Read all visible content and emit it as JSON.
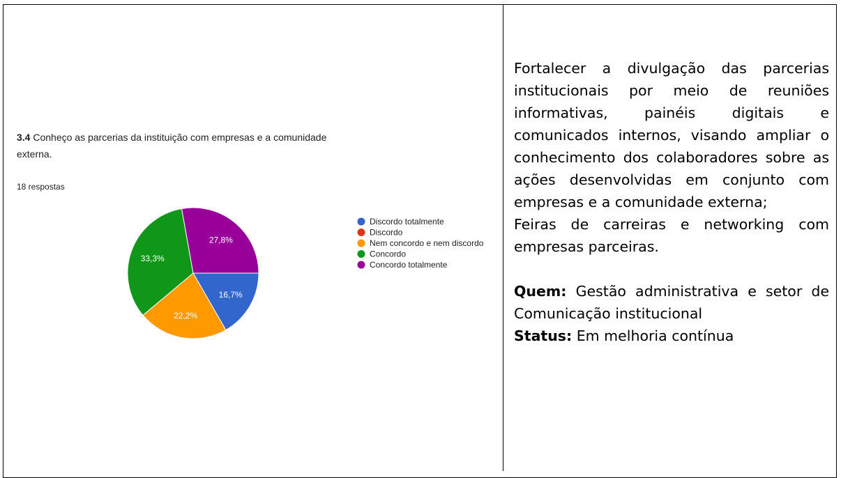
{
  "chart_data": {
    "type": "pie",
    "title_number": "3.4",
    "title": "Conheço as parcerias da instituição com empresas e a comunidade externa.",
    "subtitle": "18 respostas",
    "categories": [
      "Discordo totalmente",
      "Discordo",
      "Nem concordo e nem discordo",
      "Concordo",
      "Concordo totalmente"
    ],
    "values": [
      16.7,
      0,
      22.2,
      33.3,
      27.8
    ],
    "value_labels": [
      "16,7%",
      null,
      "22,2%",
      "33,3%",
      "27,8%"
    ],
    "colors": [
      "#3366cc",
      "#dc3912",
      "#ff9900",
      "#109618",
      "#990099"
    ],
    "legend": "right"
  },
  "right_cell": {
    "paragraphs": [
      "Fortalecer a divulgação das parcerias institucionais por meio de reuniões informativas, painéis digitais e comunicados internos, visando ampliar o conhecimento dos colaboradores sobre as ações desenvolvidas em conjunto com empresas e a comunidade externa;",
      "Feiras de carreiras e networking com empresas parceiras."
    ],
    "items": [
      {
        "label": "Quem:",
        "text": "Gestão administrativa e setor de Comunicação institucional"
      },
      {
        "label": "Status:",
        "text": "Em melhoria contínua"
      }
    ]
  }
}
